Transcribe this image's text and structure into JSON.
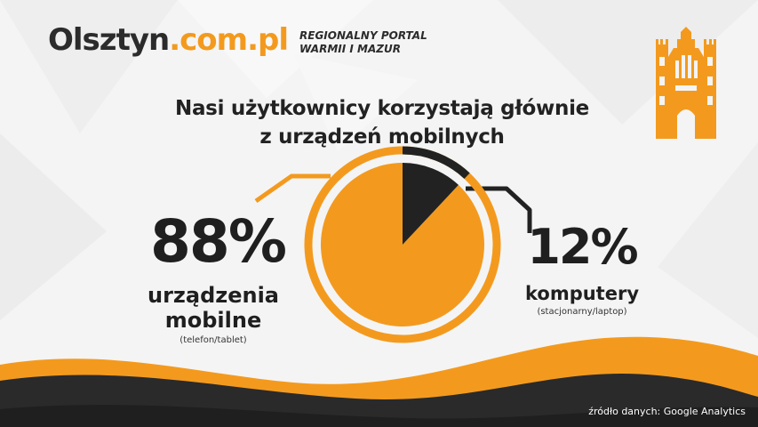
{
  "logo": {
    "part1": "Olsztyn",
    "part2": ".com.pl"
  },
  "tagline": {
    "line1": "REGIONALNY PORTAL",
    "line2": "WARMII I MAZUR"
  },
  "headline": {
    "line1": "Nasi użytkownicy korzystają głównie",
    "line2": "z urządzeń mobilnych"
  },
  "left": {
    "percent": "88%",
    "label_line1": "urządzenia",
    "label_line2": "mobilne",
    "sub": "(telefon/tablet)"
  },
  "right": {
    "percent": "12%",
    "label": "komputery",
    "sub": "(stacjonarny/laptop)"
  },
  "source": "źródło danych: Google Analytics",
  "colors": {
    "orange": "#f39a1e",
    "dark": "#222222",
    "background": "#f4f4f4"
  },
  "icons": {
    "tower": "gothic-gate-tower-icon"
  },
  "chart_data": {
    "type": "pie",
    "categories": [
      "urządzenia mobilne",
      "komputery"
    ],
    "values": [
      88,
      12
    ],
    "colors": [
      "#f39a1e",
      "#222222"
    ]
  }
}
